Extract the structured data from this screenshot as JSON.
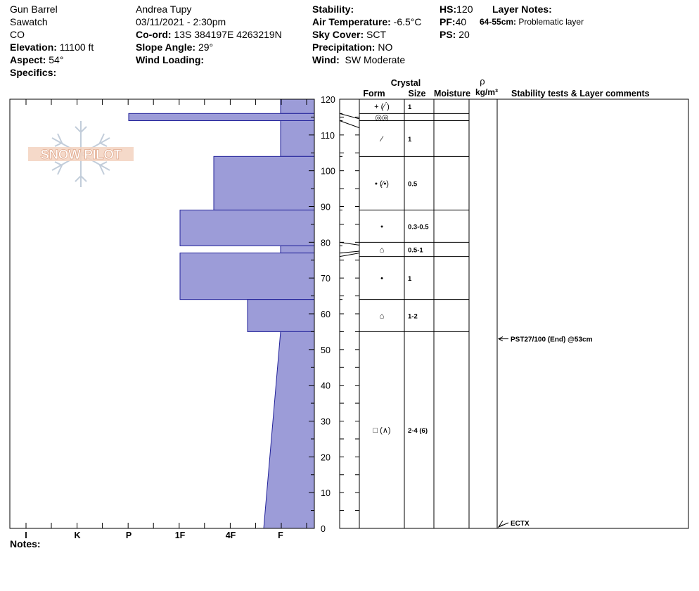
{
  "header": {
    "location": "Gun Barrel",
    "range": "Sawatch",
    "state": "CO",
    "elevation_label": "Elevation:",
    "elevation_value": "11100 ft",
    "aspect_label": "Aspect:",
    "aspect_value": "54°",
    "specifics_label": "Specifics:",
    "observer": "Andrea Tupy",
    "datetime": "03/11/2021 - 2:30pm",
    "coord_label": "Co-ord:",
    "coord_value": "13S 384197E 4263219N",
    "slope_label": "Slope Angle:",
    "slope_value": "29°",
    "wind_loading_label": "Wind Loading:",
    "stability_label": "Stability:",
    "air_temp_label": "Air Temperature:",
    "air_temp_value": "-6.5°C",
    "sky_label": "Sky Cover:",
    "sky_value": "SCT",
    "precip_label": "Precipitation:",
    "precip_value": "NO",
    "wind_label": "Wind:",
    "wind_value": "SW Moderate",
    "hs_label": "HS:",
    "hs_value": "120",
    "pf_label": "PF:",
    "pf_value": "40",
    "ps_label": "PS:",
    "ps_value": "20",
    "layer_notes_label": "Layer Notes:",
    "layer_note_range": "64-55cm:",
    "layer_note_text": "Problematic layer"
  },
  "logo_text": "SNOW PILOT",
  "notes_label": "Notes:",
  "columns": {
    "crystal": "Crystal",
    "form": "Form",
    "size": "Size",
    "moisture": "Moisture",
    "rho": "ρ",
    "density_unit": "kg/m³",
    "stability": "Stability tests & Layer comments"
  },
  "chart_data": {
    "type": "bar",
    "orientation": "horizontal",
    "y_unit": "cm",
    "ylim": [
      0,
      120
    ],
    "y_ticks": [
      0,
      10,
      20,
      30,
      40,
      50,
      60,
      70,
      80,
      90,
      100,
      110,
      120
    ],
    "hardness_categories": [
      "I",
      "K",
      "P",
      "1F",
      "4F",
      "F"
    ],
    "hardness_layers": [
      {
        "top": 120,
        "bottom": 116,
        "hardness": "F"
      },
      {
        "top": 116,
        "bottom": 114,
        "hardness": "P"
      },
      {
        "top": 114,
        "bottom": 104,
        "hardness": "F"
      },
      {
        "top": 104,
        "bottom": 89,
        "hardness": "4F+"
      },
      {
        "top": 89,
        "bottom": 79,
        "hardness": "1F"
      },
      {
        "top": 79,
        "bottom": 77,
        "hardness": "F"
      },
      {
        "top": 77,
        "bottom": 64,
        "hardness": "1F"
      },
      {
        "top": 64,
        "bottom": 55,
        "hardness": "4F-"
      },
      {
        "top": 55,
        "bottom": 0,
        "hardness_top": "F",
        "hardness_bottom": "F+"
      }
    ],
    "crystal_layers": [
      {
        "top": 120,
        "bottom": 116,
        "form": "+ (⁄ ́)",
        "size": "1"
      },
      {
        "top": 116,
        "bottom": 114,
        "form": "◎◎",
        "size": ""
      },
      {
        "top": 114,
        "bottom": 104,
        "form": "⁄",
        "size": "1"
      },
      {
        "top": 104,
        "bottom": 89,
        "form": "• (⁄•)",
        "size": "0.5"
      },
      {
        "top": 89,
        "bottom": 80,
        "form": "•",
        "size": "0.3-0.5"
      },
      {
        "top": 80,
        "bottom": 76,
        "form": "⌂",
        "size": "0.5-1"
      },
      {
        "top": 76,
        "bottom": 64,
        "form": "•",
        "size": "1"
      },
      {
        "top": 64,
        "bottom": 55,
        "form": "⌂",
        "size": "1-2"
      },
      {
        "top": 55,
        "bottom": 0,
        "form": "□ (∧)",
        "size": "2-4 (6)"
      }
    ],
    "stability_tests": [
      {
        "depth": 53,
        "text": "PST27/100 (End) @53cm"
      },
      {
        "depth": 0,
        "text": "ECTX"
      }
    ]
  }
}
